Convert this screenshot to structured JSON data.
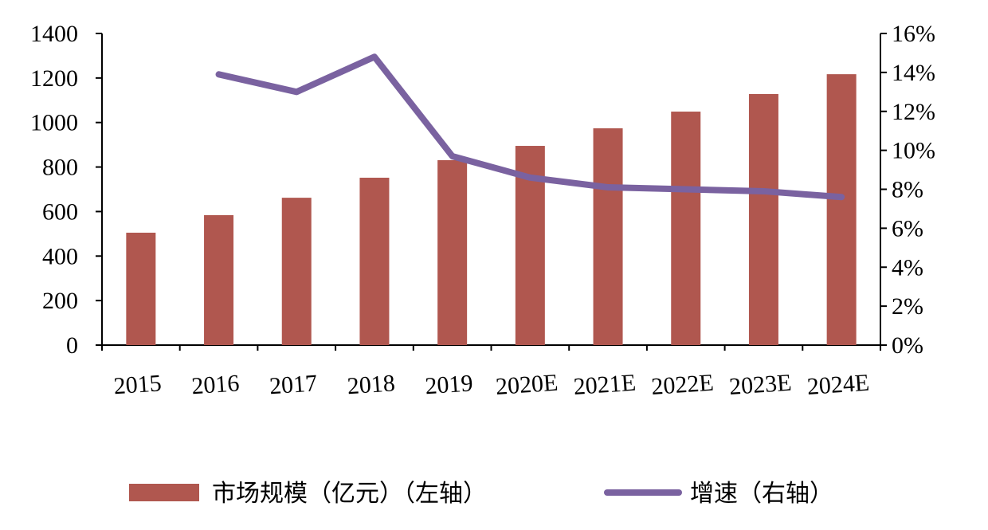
{
  "chart_data": {
    "type": "bar+line",
    "categories": [
      "2015",
      "2016",
      "2017",
      "2018",
      "2019",
      "2020E",
      "2021E",
      "2022E",
      "2023E",
      "2024E"
    ],
    "series": [
      {
        "name": "市场规模（亿元）（左轴）",
        "type": "bar",
        "axis": "left",
        "color": "#B0574F",
        "values": [
          505,
          584,
          662,
          752,
          831,
          895,
          974,
          1049,
          1128,
          1217
        ]
      },
      {
        "name": "增速（右轴）",
        "type": "line",
        "axis": "right",
        "color": "#7A62A0",
        "values": [
          null,
          13.9,
          13.0,
          14.8,
          9.7,
          8.6,
          8.1,
          8.0,
          7.9,
          7.6
        ]
      }
    ],
    "left_axis": {
      "ylim": [
        0,
        1400
      ],
      "ticks": [
        "0",
        "200",
        "400",
        "600",
        "800",
        "1000",
        "1200",
        "1400"
      ]
    },
    "right_axis": {
      "ylim": [
        0,
        16
      ],
      "ticks": [
        "0%",
        "2%",
        "4%",
        "6%",
        "8%",
        "10%",
        "12%",
        "14%",
        "16%"
      ]
    },
    "grid": false,
    "legend": "bottom"
  }
}
